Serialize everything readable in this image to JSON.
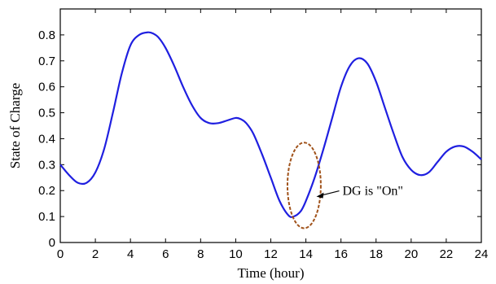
{
  "chart_data": {
    "type": "line",
    "title": "",
    "xlabel": "Time (hour)",
    "ylabel": "State of Charge",
    "xlim": [
      0,
      24
    ],
    "ylim": [
      0,
      0.9
    ],
    "x_ticks": [
      0,
      2,
      4,
      6,
      8,
      10,
      12,
      14,
      16,
      18,
      20,
      22,
      24
    ],
    "y_ticks": [
      0,
      0.1,
      0.2,
      0.3,
      0.4,
      0.5,
      0.6,
      0.7,
      0.8
    ],
    "x_tick_labels": [
      "0",
      "2",
      "4",
      "6",
      "8",
      "10",
      "12",
      "14",
      "16",
      "18",
      "20",
      "22",
      "24"
    ],
    "y_tick_labels": [
      "0",
      "0.1",
      "0.2",
      "0.3",
      "0.4",
      "0.5",
      "0.6",
      "0.7",
      "0.8"
    ],
    "grid": false,
    "series": [
      {
        "color": "#1f1fe0",
        "x": [
          0,
          0.5,
          1,
          1.5,
          2,
          2.5,
          3,
          3.5,
          4,
          4.5,
          5,
          5.3,
          5.6,
          6,
          6.5,
          7,
          7.5,
          8,
          8.5,
          9,
          9.5,
          10,
          10.3,
          10.6,
          11,
          11.5,
          12,
          12.5,
          13,
          13.3,
          13.7,
          14,
          14.5,
          15,
          15.5,
          16,
          16.5,
          17,
          17.5,
          18,
          18.5,
          19,
          19.5,
          20,
          20.5,
          21,
          21.5,
          22,
          22.5,
          23,
          23.5,
          24
        ],
        "y": [
          0.3,
          0.26,
          0.23,
          0.23,
          0.27,
          0.36,
          0.5,
          0.65,
          0.76,
          0.8,
          0.81,
          0.805,
          0.79,
          0.75,
          0.68,
          0.6,
          0.53,
          0.48,
          0.46,
          0.46,
          0.47,
          0.48,
          0.475,
          0.46,
          0.42,
          0.34,
          0.25,
          0.16,
          0.105,
          0.1,
          0.12,
          0.16,
          0.25,
          0.36,
          0.48,
          0.6,
          0.68,
          0.71,
          0.69,
          0.62,
          0.52,
          0.42,
          0.33,
          0.28,
          0.26,
          0.27,
          0.31,
          0.35,
          0.37,
          0.37,
          0.35,
          0.32
        ]
      }
    ],
    "annotations": [
      {
        "text": "DG is \"On\"",
        "ellipse_center": [
          13.9,
          0.22
        ],
        "ellipse_half_width_hours": 0.95,
        "ellipse_half_height": 0.165,
        "ellipse_color": "#a0521a",
        "arrow_target": [
          14.6,
          0.18
        ]
      }
    ]
  }
}
